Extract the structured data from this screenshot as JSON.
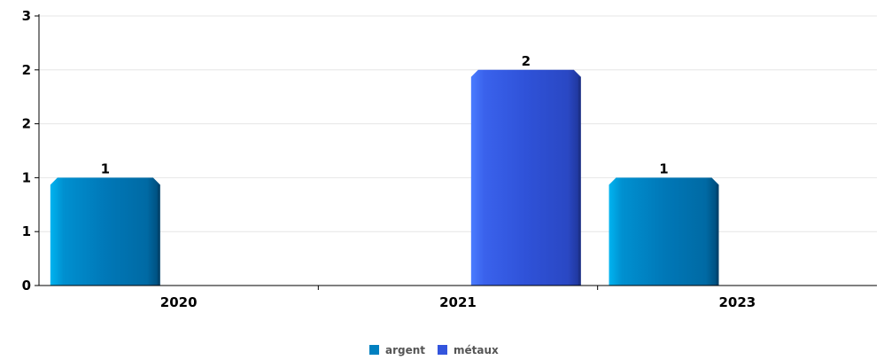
{
  "chart_data": {
    "type": "bar",
    "categories": [
      "2020",
      "2021",
      "2023"
    ],
    "series": [
      {
        "name": "argent",
        "values": [
          1,
          0,
          1
        ],
        "color": "#0080c0"
      },
      {
        "name": "métaux",
        "values": [
          0,
          2,
          0
        ],
        "color": "#3355dd"
      }
    ],
    "data_labels": [
      "1",
      "2",
      "1"
    ],
    "y_tick_labels": [
      "0",
      "1",
      "1",
      "2",
      "2",
      "3"
    ],
    "ylim": [
      0,
      2.5
    ],
    "grid": true,
    "legend_position": "bottom-center",
    "bar_style": "3d-cylinder"
  }
}
